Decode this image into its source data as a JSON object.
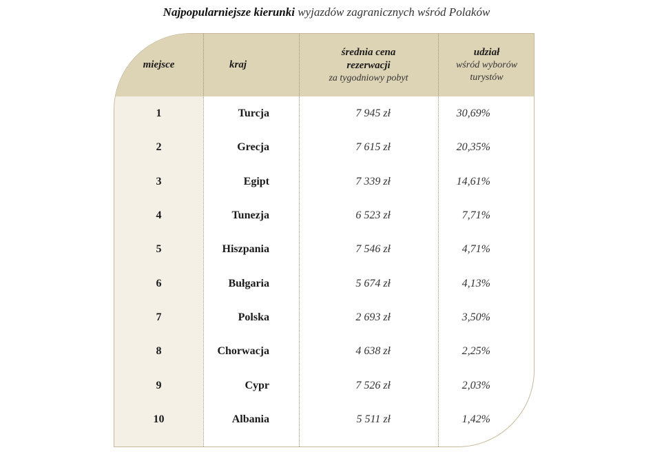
{
  "title": {
    "strong": "Najpopularniejsze kierunki",
    "rest": " wyjazdów zagranicznych wśród Polaków"
  },
  "table": {
    "headers": {
      "rank": "miejsce",
      "country": "kraj",
      "price_line1": "średnia cena",
      "price_line2": "rezerwacji",
      "price_sub": "za tygodniowy pobyt",
      "share_main": "udział",
      "share_sub1": "wśród wyborów",
      "share_sub2": "turystów"
    },
    "rows": [
      {
        "rank": "1",
        "country": "Turcja",
        "price": "7 945 zł",
        "share": "30,69%"
      },
      {
        "rank": "2",
        "country": "Grecja",
        "price": "7 615 zł",
        "share": "20,35%"
      },
      {
        "rank": "3",
        "country": "Egipt",
        "price": "7 339 zł",
        "share": "14,61%"
      },
      {
        "rank": "4",
        "country": "Tunezja",
        "price": "6 523 zł",
        "share": "7,71%"
      },
      {
        "rank": "5",
        "country": "Hiszpania",
        "price": "7 546 zł",
        "share": "4,71%"
      },
      {
        "rank": "6",
        "country": "Bułgaria",
        "price": "5 674 zł",
        "share": "4,13%"
      },
      {
        "rank": "7",
        "country": "Polska",
        "price": "2 693 zł",
        "share": "3,50%"
      },
      {
        "rank": "8",
        "country": "Chorwacja",
        "price": "4 638 zł",
        "share": "2,25%"
      },
      {
        "rank": "9",
        "country": "Cypr",
        "price": "7 526 zł",
        "share": "2,03%"
      },
      {
        "rank": "10",
        "country": "Albania",
        "price": "5 511 zł",
        "share": "1,42%"
      }
    ]
  }
}
